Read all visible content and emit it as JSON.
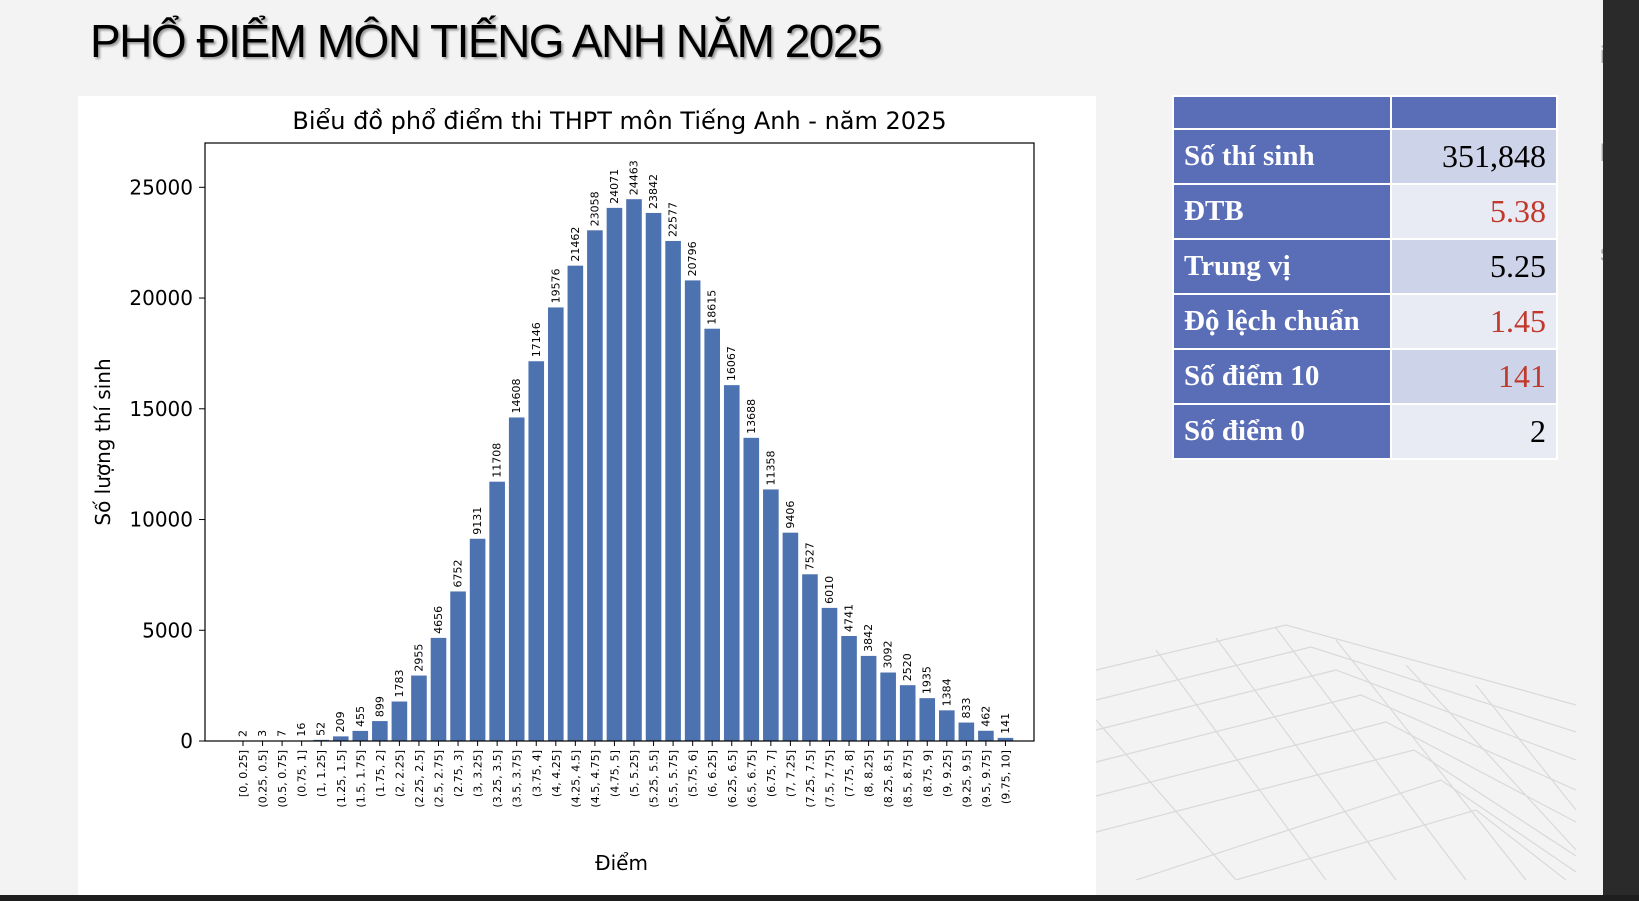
{
  "slide": {
    "title": "PHỔ ĐIỂM MÔN TIẾNG ANH NĂM 2025",
    "ghost_texts": [
      "i g",
      "bộ",
      "sủ"
    ]
  },
  "stats": {
    "header": [
      "",
      ""
    ],
    "rows": [
      {
        "label": "Số thí sinh",
        "value": "351,848",
        "color": "#000000"
      },
      {
        "label": "ĐTB",
        "value": "5.38",
        "color": "#c0392b"
      },
      {
        "label": "Trung vị",
        "value": "5.25",
        "color": "#000000"
      },
      {
        "label": "Độ lệch chuẩn",
        "value": "1.45",
        "color": "#c0392b"
      },
      {
        "label": "Số điểm 10",
        "value": "141",
        "color": "#c0392b"
      },
      {
        "label": "Số điểm 0",
        "value": "2",
        "color": "#000000"
      }
    ]
  },
  "chart_data": {
    "type": "bar",
    "title": "Biểu đồ phổ điểm thi THPT môn Tiếng Anh - năm 2025",
    "xlabel": "Điểm",
    "ylabel": "Số lượng thí sinh",
    "ylim": [
      0,
      27000
    ],
    "yticks": [
      0,
      5000,
      10000,
      15000,
      20000,
      25000
    ],
    "bar_color": "#4c72b0",
    "categories": [
      "[0, 0.25]",
      "(0.25, 0.5]",
      "(0.5, 0.75]",
      "(0.75, 1]",
      "(1, 1.25]",
      "(1.25, 1.5]",
      "(1.5, 1.75]",
      "(1.75, 2]",
      "(2, 2.25]",
      "(2.25, 2.5]",
      "(2.5, 2.75]",
      "(2.75, 3]",
      "(3, 3.25]",
      "(3.25, 3.5]",
      "(3.5, 3.75]",
      "(3.75, 4]",
      "(4, 4.25]",
      "(4.25, 4.5]",
      "(4.5, 4.75]",
      "(4.75, 5]",
      "(5, 5.25]",
      "(5.25, 5.5]",
      "(5.5, 5.75]",
      "(5.75, 6]",
      "(6, 6.25]",
      "(6.25, 6.5]",
      "(6.5, 6.75]",
      "(6.75, 7]",
      "(7, 7.25]",
      "(7.25, 7.5]",
      "(7.5, 7.75]",
      "(7.75, 8]",
      "(8, 8.25]",
      "(8.25, 8.5]",
      "(8.5, 8.75]",
      "(8.75, 9]",
      "(9, 9.25]",
      "(9.25, 9.5]",
      "(9.5, 9.75]",
      "(9.75, 10]"
    ],
    "values": [
      2,
      3,
      7,
      16,
      52,
      209,
      455,
      899,
      1783,
      2955,
      4656,
      6752,
      9131,
      11708,
      14608,
      17146,
      19576,
      21462,
      23058,
      24071,
      24463,
      23842,
      22577,
      20796,
      18615,
      16067,
      13688,
      11358,
      9406,
      7527,
      6010,
      4741,
      3842,
      3092,
      2520,
      1935,
      1384,
      833,
      462,
      141
    ]
  }
}
